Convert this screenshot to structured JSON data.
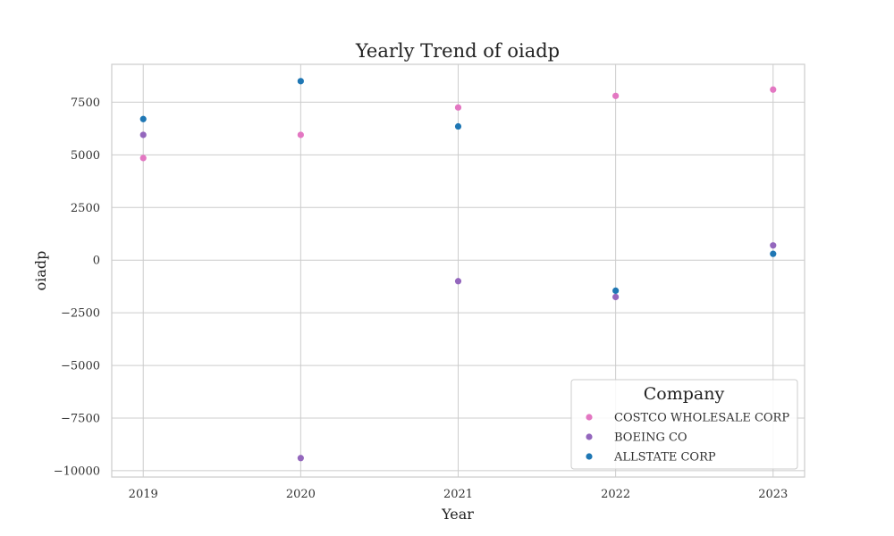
{
  "chart_data": {
    "type": "scatter",
    "title": "Yearly Trend of oiadp",
    "xlabel": "Year",
    "ylabel": "oiadp",
    "x": [
      2019,
      2020,
      2021,
      2022,
      2023
    ],
    "xlim": [
      2018.8,
      2023.2
    ],
    "ylim": [
      -10300,
      9300
    ],
    "yticks": [
      -10000,
      -7500,
      -5000,
      -2500,
      0,
      2500,
      5000,
      7500
    ],
    "ytick_labels": [
      "−10000",
      "−7500",
      "−5000",
      "−2500",
      "0",
      "2500",
      "5000",
      "7500"
    ],
    "grid": true,
    "legend": {
      "title": "Company",
      "placement": "lower-right"
    },
    "series": [
      {
        "name": "COSTCO WHOLESALE CORP",
        "color": "#e377c2",
        "values": [
          4850,
          5950,
          7250,
          7800,
          8100
        ]
      },
      {
        "name": "BOEING CO",
        "color": "#9467bd",
        "values": [
          5950,
          -9400,
          -1000,
          -1750,
          700
        ]
      },
      {
        "name": "ALLSTATE CORP",
        "color": "#1f77b4",
        "values": [
          6700,
          8500,
          6350,
          -1450,
          300
        ]
      }
    ]
  }
}
